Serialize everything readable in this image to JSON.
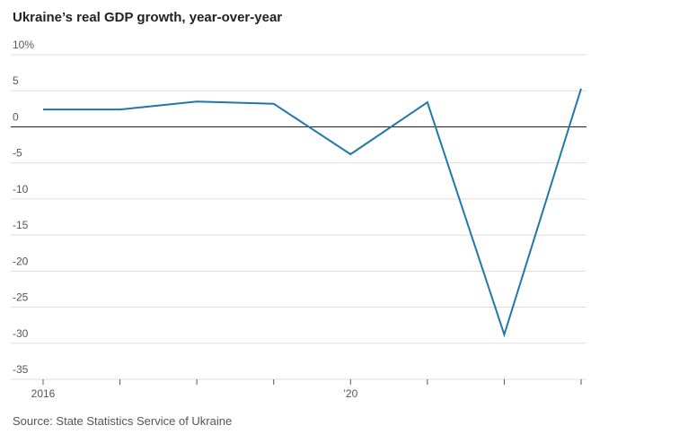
{
  "chart_data": {
    "type": "line",
    "title": "Ukraine’s real GDP growth, year-over-year",
    "source": "Source: State Statistics Service of Ukraine",
    "x": [
      2016,
      2017,
      2018,
      2019,
      2020,
      2021,
      2022,
      2023
    ],
    "series": [
      {
        "name": "Real GDP growth",
        "color": "#1f78a8",
        "values": [
          2.4,
          2.4,
          3.5,
          3.2,
          -3.8,
          3.4,
          -28.8,
          5.3
        ]
      }
    ],
    "xlim": [
      2016,
      2023
    ],
    "xticks": [
      2016,
      {
        "value": 2020,
        "label": "’20"
      }
    ],
    "xminorticks": [
      2017,
      2018,
      2019,
      2021,
      2022,
      2023
    ],
    "ylim": [
      -35,
      10
    ],
    "yticks": [
      {
        "value": 10,
        "label": "10%"
      },
      5,
      0,
      -5,
      -10,
      -15,
      -20,
      -25,
      -30,
      -35
    ],
    "grid": true
  }
}
